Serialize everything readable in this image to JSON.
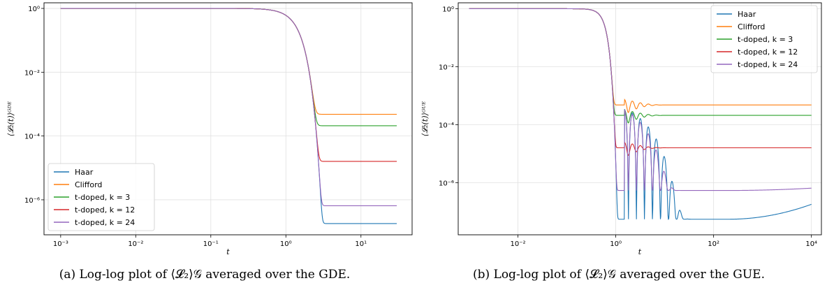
{
  "chart_data": [
    {
      "type": "line",
      "caption": "(a) Log-log plot of ⟨𝓛₂⟩𝒢 averaged over the GDE.",
      "xlabel": "t",
      "ylabel": "⟨𝓛₂(t)⟩ᴳᴰᴱ",
      "xscale": "log",
      "yscale": "log",
      "xlim": [
        0.0006,
        48
      ],
      "ylim": [
        8e-08,
        1.5
      ],
      "xticks": [
        0.001,
        0.01,
        0.1,
        1,
        10
      ],
      "xtick_labels": [
        "10⁻³",
        "10⁻²",
        "10⁻¹",
        "10⁰",
        "10¹"
      ],
      "yticks": [
        1,
        0.01,
        0.0001,
        1e-06
      ],
      "ytick_labels": [
        "10⁰",
        "10⁻²",
        "10⁻⁴",
        "10⁻⁶"
      ],
      "grid": true,
      "legend_position": "lower-left",
      "series": [
        {
          "name": "Haar",
          "color": "#1f77b4",
          "plateau": 1.8e-07
        },
        {
          "name": "Clifford",
          "color": "#ff7f0e",
          "plateau": 0.00048
        },
        {
          "name": "t-doped, k = 3",
          "color": "#2ca02c",
          "plateau": 0.00021
        },
        {
          "name": "t-doped, k = 12",
          "color": "#d62728",
          "plateau": 1.6e-05
        },
        {
          "name": "t-doped, k = 24",
          "color": "#9467bd",
          "plateau": 6.5e-07
        }
      ],
      "t_range": [
        0.001,
        30
      ]
    },
    {
      "type": "line",
      "caption": "(b) Log-log plot of ⟨𝓛₂⟩𝒢 averaged over the GUE.",
      "xlabel": "t",
      "ylabel": "⟨𝓛₂(t)⟩ᴳᵁᴱ",
      "xscale": "log",
      "yscale": "log",
      "xlim": [
        0.0006,
        16000
      ],
      "ylim": [
        1.6e-08,
        1.6
      ],
      "xticks": [
        0.01,
        1,
        100,
        10000
      ],
      "xtick_labels": [
        "10⁻²",
        "10⁰",
        "10²",
        "10⁴"
      ],
      "yticks": [
        1,
        0.01,
        0.0001,
        1e-06
      ],
      "ytick_labels": [
        "10⁰",
        "10⁻²",
        "10⁻⁴",
        "10⁻⁶"
      ],
      "grid": true,
      "legend_position": "top-right",
      "series": [
        {
          "name": "Haar",
          "color": "#1f77b4",
          "plateau": 5.5e-08,
          "end": 1.8e-07
        },
        {
          "name": "Clifford",
          "color": "#ff7f0e",
          "plateau": 0.00048,
          "end": 0.00048
        },
        {
          "name": "t-doped, k = 3",
          "color": "#2ca02c",
          "plateau": 0.00021,
          "end": 0.00021
        },
        {
          "name": "t-doped, k = 12",
          "color": "#d62728",
          "plateau": 1.6e-05,
          "end": 1.6e-05
        },
        {
          "name": "t-doped, k = 24",
          "color": "#9467bd",
          "plateau": 5.4e-07,
          "end": 6.5e-07
        }
      ],
      "t_range": [
        0.001,
        10000
      ]
    }
  ]
}
